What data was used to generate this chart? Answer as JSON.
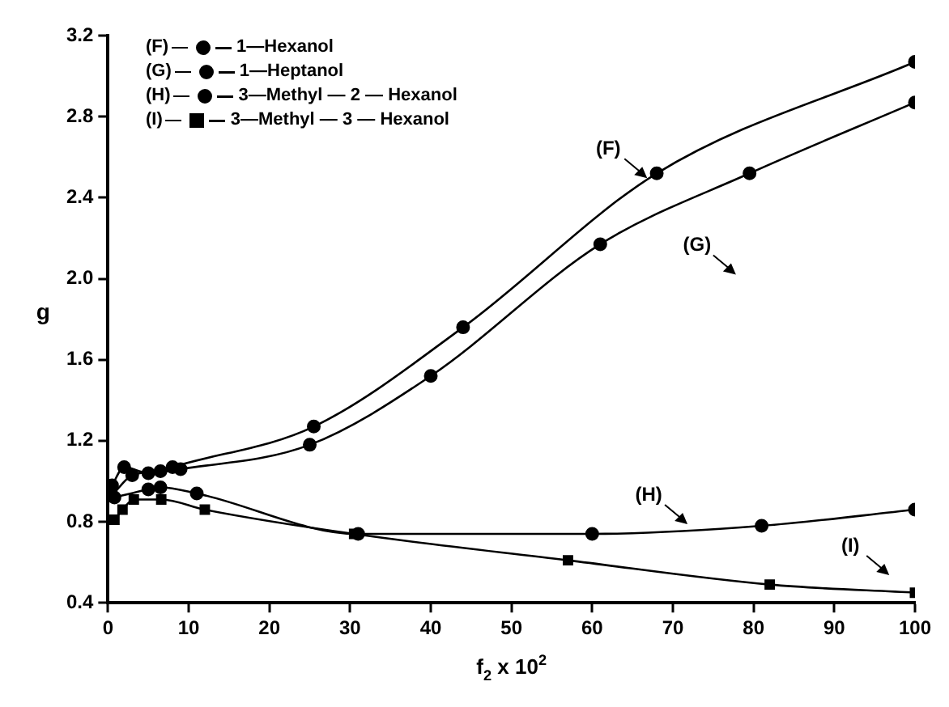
{
  "chart_data": {
    "type": "line",
    "xlabel": "f$_{2}$ x 10$^{2}$",
    "ylabel": "g",
    "xlim": [
      0,
      100
    ],
    "xticks": [
      0,
      10,
      20,
      30,
      40,
      50,
      60,
      70,
      80,
      90,
      100
    ],
    "ylim": [
      0.4,
      3.2
    ],
    "yticks": [
      0.4,
      0.8,
      1.2,
      1.6,
      {
        "value": 2,
        "label": "2.0"
      },
      2.4,
      2.8,
      3.2
    ],
    "grid": false,
    "legend": "top left",
    "marker": "circle",
    "line_style": "solid",
    "series": [
      {
        "name": "1—Hexanol",
        "color": "#000000",
        "x": [
          0.5,
          3,
          6.5,
          8,
          25.5,
          44,
          68,
          100
        ],
        "values": [
          0.93,
          1.03,
          1.05,
          1.07,
          1.27,
          1.76,
          2.52,
          3.07
        ]
      },
      {
        "name": "1—Heptanol",
        "color": "#000000",
        "x": [
          0.5,
          2,
          5,
          9,
          25,
          40,
          61,
          79.5,
          100
        ],
        "values": [
          0.98,
          1.07,
          1.04,
          1.06,
          1.18,
          1.52,
          2.17,
          2.52,
          2.87
        ]
      },
      {
        "name": "3—Methyl — 2 — Hexanol",
        "color": "#000000",
        "x": [
          0.8,
          5,
          6.5,
          11,
          31,
          60,
          81,
          100
        ],
        "values": [
          0.92,
          0.96,
          0.97,
          0.94,
          0.74,
          0.74,
          0.78,
          0.86
        ]
      },
      {
        "name": "3—Methyl — 3 — Hexanol",
        "color": "#000000",
        "marker": "square",
        "x": [
          0.8,
          1.8,
          3.2,
          6.6,
          12,
          30.5,
          57,
          82,
          100
        ],
        "values": [
          0.81,
          0.86,
          0.91,
          0.91,
          0.86,
          0.74,
          0.61,
          0.49,
          0.45
        ]
      }
    ],
    "annotations": [
      "(F)",
      "(G)",
      "(H)",
      "(I)"
    ]
  }
}
